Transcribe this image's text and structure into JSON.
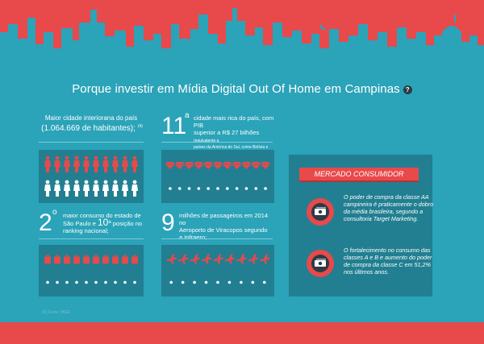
{
  "header": {
    "title": "Porque investir em Mídia Digital Out Of Home em Campinas",
    "help_label": "?"
  },
  "stats": {
    "largest_city": {
      "line1": "Maior cidade interiorana do país",
      "line2": "(1.064.669 de habitantes);",
      "ref": "(4)"
    },
    "richest_city": {
      "rank": "11",
      "rank_suffix": "a",
      "line1": "cidade mais rica do país, com PIB",
      "line2": "superior a R$ 27 bilhões",
      "line2_note": "(equivalente a",
      "line3": "países da América do Sul, como Bolívia e Paraguai)"
    },
    "consumption": {
      "rank": "2",
      "rank_suffix": "o",
      "line1": "maior consumo do estado de",
      "line2a": "São Paulo e",
      "line2_num": "10",
      "line2_sup": "a",
      "line2b": "posição no",
      "line3": "ranking nacional;"
    },
    "passengers": {
      "number": "9",
      "line1": "milhões de passageiros em 2014 no",
      "line2": "Aeroporto de Viracopos segundo",
      "line3": "a Infraero;"
    }
  },
  "mercado": {
    "title": "MERCADO CONSUMIDOR",
    "item1": {
      "line1": "O poder de compra da classe AA",
      "line2": "campineira é praticamente o dobro",
      "line3": "da média brasileira, segundo a",
      "line4": "consultoria Target Marketing."
    },
    "item2": {
      "line1": "O fortalecimento no consumo das",
      "line2": "classes A e B e aumento do poder",
      "line3": "de compra da classe C em 51,2%",
      "line4": "nos últimos anos."
    }
  },
  "source_note": "(4) Fonte: IBGE",
  "colors": {
    "red": "#e8494b",
    "teal": "#2ba3b9",
    "dark_teal": "#217f91",
    "white": "#ffffff",
    "navy": "#2d3a46"
  },
  "icons": {
    "person": "person-icon",
    "diamond": "diamond-icon",
    "shopping_bag": "shopping-bag-icon",
    "airplane": "airplane-icon",
    "money": "money-icon"
  },
  "pictograms": {
    "people_highlighted": 10,
    "people_total": 20,
    "diamonds_highlighted": 11,
    "diamonds_total": 22,
    "bags_highlighted": 10,
    "bags_total": 20,
    "planes_highlighted": 9,
    "planes_total": 18
  }
}
